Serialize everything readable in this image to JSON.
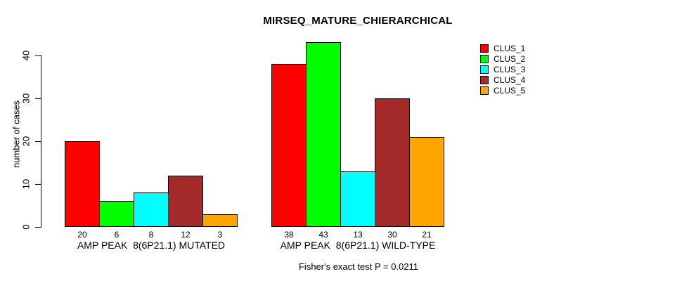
{
  "chart_data": {
    "type": "bar",
    "title": "MIRSEQ_MATURE_CHIERARCHICAL",
    "ylabel": "number of cases",
    "xlabel": "",
    "ylim": [
      0,
      43
    ],
    "yticks": [
      0,
      10,
      20,
      30,
      40
    ],
    "grid": false,
    "legend_position": "top-right",
    "series": [
      {
        "name": "CLUS_1",
        "color": "#FF0000"
      },
      {
        "name": "CLUS_2",
        "color": "#00FF00"
      },
      {
        "name": "CLUS_3",
        "color": "#00FFFF"
      },
      {
        "name": "CLUS_4",
        "color": "#A52A2A"
      },
      {
        "name": "CLUS_5",
        "color": "#FFA500"
      }
    ],
    "groups": [
      {
        "label": "AMP PEAK  8(6P21.1) MUTATED",
        "values": [
          20,
          6,
          8,
          12,
          3
        ]
      },
      {
        "label": "AMP PEAK  8(6P21.1) WILD-TYPE",
        "values": [
          38,
          43,
          13,
          30,
          21
        ]
      }
    ],
    "annotation": "Fisher's exact test P = 0.0211"
  }
}
